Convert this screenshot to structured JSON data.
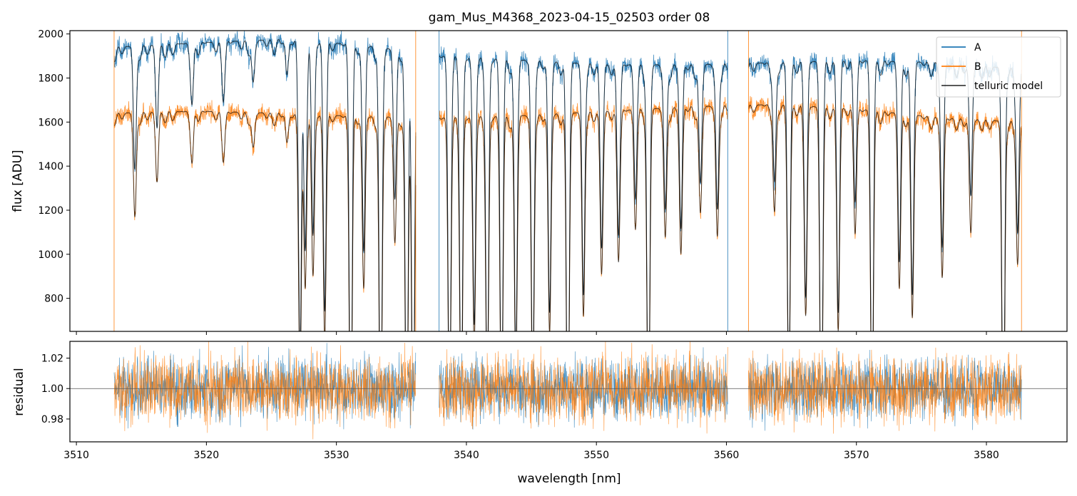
{
  "figure": {
    "title": "gam_Mus_M4368_2023-04-15_02503  order 08"
  },
  "colors": {
    "A": "#1f77b4",
    "B": "#ff7f0e",
    "telluric": "#000000",
    "residual_ref": "#555555"
  },
  "chart_data": [
    {
      "type": "line",
      "panel": "spectrum",
      "title": "gam_Mus_M4368_2023-04-15_02503  order 08",
      "xlabel": "",
      "ylabel": "flux [ADU]",
      "xlim": [
        3509.5,
        3586.2
      ],
      "ylim": [
        650,
        2015
      ],
      "x_ticks": [
        3510,
        3520,
        3530,
        3540,
        3550,
        3560,
        3570,
        3580
      ],
      "y_ticks": [
        800,
        1000,
        1200,
        1400,
        1600,
        1800,
        2000
      ],
      "y_tick_labels": [
        "800",
        "1000",
        "1200",
        "1400",
        "1600",
        "1800",
        "2000"
      ],
      "grid": false,
      "legend": {
        "position": "top-right",
        "entries": [
          "A",
          "B",
          "telluric model"
        ]
      },
      "segments_nm": [
        [
          3512.9,
          3536.1
        ],
        [
          3537.9,
          3560.1
        ],
        [
          3561.7,
          3582.7
        ]
      ],
      "series": [
        {
          "name": "A",
          "continuum_adu": [
            1940,
            1960,
            1975,
            1950,
            1900,
            1880,
            1860,
            1860,
            1870,
            1880,
            1870,
            1840
          ]
        },
        {
          "name": "B",
          "continuum_adu": [
            1640,
            1650,
            1640,
            1625,
            1620,
            1630,
            1650,
            1670,
            1680,
            1660,
            1620,
            1600
          ]
        },
        {
          "name": "telluric model",
          "note_on": [
            "A",
            "B"
          ]
        }
      ],
      "absorption_lines_nm": [
        {
          "x": 3514.5,
          "depth": 0.18
        },
        {
          "x": 3516.2,
          "depth": 0.12
        },
        {
          "x": 3518.9,
          "depth": 0.08
        },
        {
          "x": 3521.3,
          "depth": 0.07
        },
        {
          "x": 3523.6,
          "depth": 0.06
        },
        {
          "x": 3526.2,
          "depth": 0.05
        },
        {
          "x": 3527.2,
          "depth": 0.45
        },
        {
          "x": 3527.6,
          "depth": 0.3
        },
        {
          "x": 3528.2,
          "depth": 0.28
        },
        {
          "x": 3529.1,
          "depth": 0.38
        },
        {
          "x": 3531.1,
          "depth": 0.62
        },
        {
          "x": 3532.1,
          "depth": 0.3
        },
        {
          "x": 3533.4,
          "depth": 0.62
        },
        {
          "x": 3534.5,
          "depth": 0.22
        },
        {
          "x": 3535.4,
          "depth": 0.62
        },
        {
          "x": 3535.9,
          "depth": 0.62
        },
        {
          "x": 3538.7,
          "depth": 0.55
        },
        {
          "x": 3539.6,
          "depth": 0.55
        },
        {
          "x": 3540.6,
          "depth": 0.4
        },
        {
          "x": 3541.6,
          "depth": 0.5
        },
        {
          "x": 3542.7,
          "depth": 0.55
        },
        {
          "x": 3543.8,
          "depth": 0.45
        },
        {
          "x": 3545.1,
          "depth": 0.5
        },
        {
          "x": 3546.4,
          "depth": 0.38
        },
        {
          "x": 3547.8,
          "depth": 0.62
        },
        {
          "x": 3549.0,
          "depth": 0.35
        },
        {
          "x": 3550.4,
          "depth": 0.28
        },
        {
          "x": 3551.7,
          "depth": 0.25
        },
        {
          "x": 3553.0,
          "depth": 0.2
        },
        {
          "x": 3554.0,
          "depth": 0.58
        },
        {
          "x": 3555.3,
          "depth": 0.22
        },
        {
          "x": 3556.5,
          "depth": 0.25
        },
        {
          "x": 3558.0,
          "depth": 0.18
        },
        {
          "x": 3559.3,
          "depth": 0.22
        },
        {
          "x": 3563.7,
          "depth": 0.18
        },
        {
          "x": 3564.8,
          "depth": 0.5
        },
        {
          "x": 3566.1,
          "depth": 0.35
        },
        {
          "x": 3567.3,
          "depth": 0.62
        },
        {
          "x": 3568.6,
          "depth": 0.38
        },
        {
          "x": 3569.9,
          "depth": 0.2
        },
        {
          "x": 3571.2,
          "depth": 0.55
        },
        {
          "x": 3573.3,
          "depth": 0.3
        },
        {
          "x": 3574.3,
          "depth": 0.35
        },
        {
          "x": 3576.6,
          "depth": 0.28
        },
        {
          "x": 3578.8,
          "depth": 0.2
        },
        {
          "x": 3581.3,
          "depth": 0.62
        },
        {
          "x": 3582.4,
          "depth": 0.25
        }
      ]
    },
    {
      "type": "line",
      "panel": "residual",
      "xlabel": "wavelength [nm]",
      "ylabel": "residual",
      "xlim": [
        3509.5,
        3586.2
      ],
      "ylim": [
        0.965,
        1.031
      ],
      "x_ticks": [
        3510,
        3520,
        3530,
        3540,
        3550,
        3560,
        3570,
        3580
      ],
      "x_tick_labels": [
        "3510",
        "3520",
        "3530",
        "3540",
        "3550",
        "3560",
        "3570",
        "3580"
      ],
      "y_ticks": [
        0.98,
        1.0,
        1.02
      ],
      "y_tick_labels": [
        "0.98",
        "1.00",
        "1.02"
      ],
      "reference_line": 1.0,
      "grid": false,
      "segments_nm": [
        [
          3512.9,
          3536.1
        ],
        [
          3537.9,
          3560.1
        ],
        [
          3561.7,
          3582.7
        ]
      ],
      "series": [
        {
          "name": "A",
          "mean": 1.0,
          "scatter": 0.01
        },
        {
          "name": "B",
          "mean": 1.0,
          "scatter": 0.011
        }
      ]
    }
  ]
}
